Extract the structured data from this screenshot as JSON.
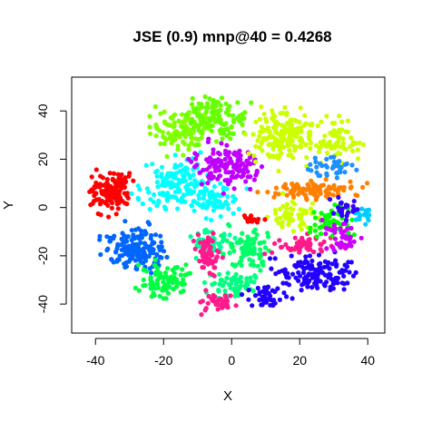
{
  "chart_data": {
    "type": "scatter",
    "title": "JSE (0.9) mnp@40 = 0.4268",
    "xlabel": "X",
    "ylabel": "Y",
    "xlim": [
      -47,
      45
    ],
    "ylim": [
      -52,
      54
    ],
    "xticks": [
      -40,
      -20,
      0,
      20,
      40
    ],
    "yticks": [
      -40,
      -20,
      0,
      20,
      40
    ],
    "xtick_labels": [
      "-40",
      "-20",
      "0",
      "20",
      "40"
    ],
    "ytick_labels": [
      "-40",
      "-20",
      "0",
      "20",
      "40"
    ],
    "grid": false,
    "legend": "none",
    "clusters": [
      {
        "color": "#ff0000",
        "center": [
          -36,
          7
        ],
        "spread": [
          4.0,
          5.5
        ],
        "count": 130
      },
      {
        "color": "#0066ff",
        "center": [
          -28,
          -17
        ],
        "spread": [
          6.0,
          6.0
        ],
        "count": 160
      },
      {
        "color": "#00ffff",
        "center": [
          -16,
          10
        ],
        "spread": [
          7.0,
          7.0
        ],
        "count": 150
      },
      {
        "color": "#00ffff",
        "center": [
          -5,
          3
        ],
        "spread": [
          5.0,
          5.0
        ],
        "count": 60
      },
      {
        "color": "#7fff00",
        "center": [
          -15,
          32
        ],
        "spread": [
          6.0,
          6.0
        ],
        "count": 110
      },
      {
        "color": "#66ff00",
        "center": [
          -4,
          37
        ],
        "spread": [
          6.0,
          6.0
        ],
        "count": 110
      },
      {
        "color": "#bf00ff",
        "center": [
          -1,
          17
        ],
        "spread": [
          7.0,
          6.0
        ],
        "count": 140
      },
      {
        "color": "#ccff00",
        "center": [
          16,
          30
        ],
        "spread": [
          7.0,
          8.0
        ],
        "count": 170
      },
      {
        "color": "#ccff00",
        "center": [
          31,
          28
        ],
        "spread": [
          5.0,
          6.0
        ],
        "count": 60
      },
      {
        "color": "#ff8000",
        "center": [
          24,
          7
        ],
        "spread": [
          9.0,
          2.5
        ],
        "count": 100
      },
      {
        "color": "#1e90ff",
        "center": [
          29,
          17
        ],
        "spread": [
          5.0,
          3.0
        ],
        "count": 40
      },
      {
        "color": "#00ff40",
        "center": [
          -20,
          -30
        ],
        "spread": [
          5.0,
          5.0
        ],
        "count": 90
      },
      {
        "color": "#00ff99",
        "center": [
          -6,
          -14
        ],
        "spread": [
          4.0,
          4.0
        ],
        "count": 50
      },
      {
        "color": "#00ff66",
        "center": [
          5,
          -17
        ],
        "spread": [
          5.0,
          6.0
        ],
        "count": 90
      },
      {
        "color": "#00ff80",
        "center": [
          0,
          -32
        ],
        "spread": [
          5.0,
          4.0
        ],
        "count": 60
      },
      {
        "color": "#ff1a8c",
        "center": [
          -7,
          -18
        ],
        "spread": [
          3.0,
          6.0
        ],
        "count": 60
      },
      {
        "color": "#ff1a8c",
        "center": [
          -4,
          -39
        ],
        "spread": [
          4.0,
          3.0
        ],
        "count": 40
      },
      {
        "color": "#ff1a8c",
        "center": [
          22,
          -16
        ],
        "spread": [
          8.0,
          3.0
        ],
        "count": 60
      },
      {
        "color": "#2200ff",
        "center": [
          25,
          -27
        ],
        "spread": [
          8.0,
          5.0
        ],
        "count": 140
      },
      {
        "color": "#2200ff",
        "center": [
          10,
          -37
        ],
        "spread": [
          4.0,
          3.0
        ],
        "count": 40
      },
      {
        "color": "#ccff00",
        "center": [
          18,
          -4
        ],
        "spread": [
          6.0,
          5.0
        ],
        "count": 60
      },
      {
        "color": "#00ff00",
        "center": [
          29,
          -5
        ],
        "spread": [
          5.0,
          5.0
        ],
        "count": 50
      },
      {
        "color": "#cc00ff",
        "center": [
          32,
          -12
        ],
        "spread": [
          4.0,
          5.0
        ],
        "count": 40
      },
      {
        "color": "#00ccff",
        "center": [
          39,
          -3
        ],
        "spread": [
          2.0,
          3.0
        ],
        "count": 20
      },
      {
        "color": "#3300ff",
        "center": [
          33,
          0
        ],
        "spread": [
          3.0,
          3.0
        ],
        "count": 25
      },
      {
        "color": "#ff0000",
        "center": [
          6,
          -5
        ],
        "spread": [
          2.0,
          1.5
        ],
        "count": 15
      }
    ]
  }
}
